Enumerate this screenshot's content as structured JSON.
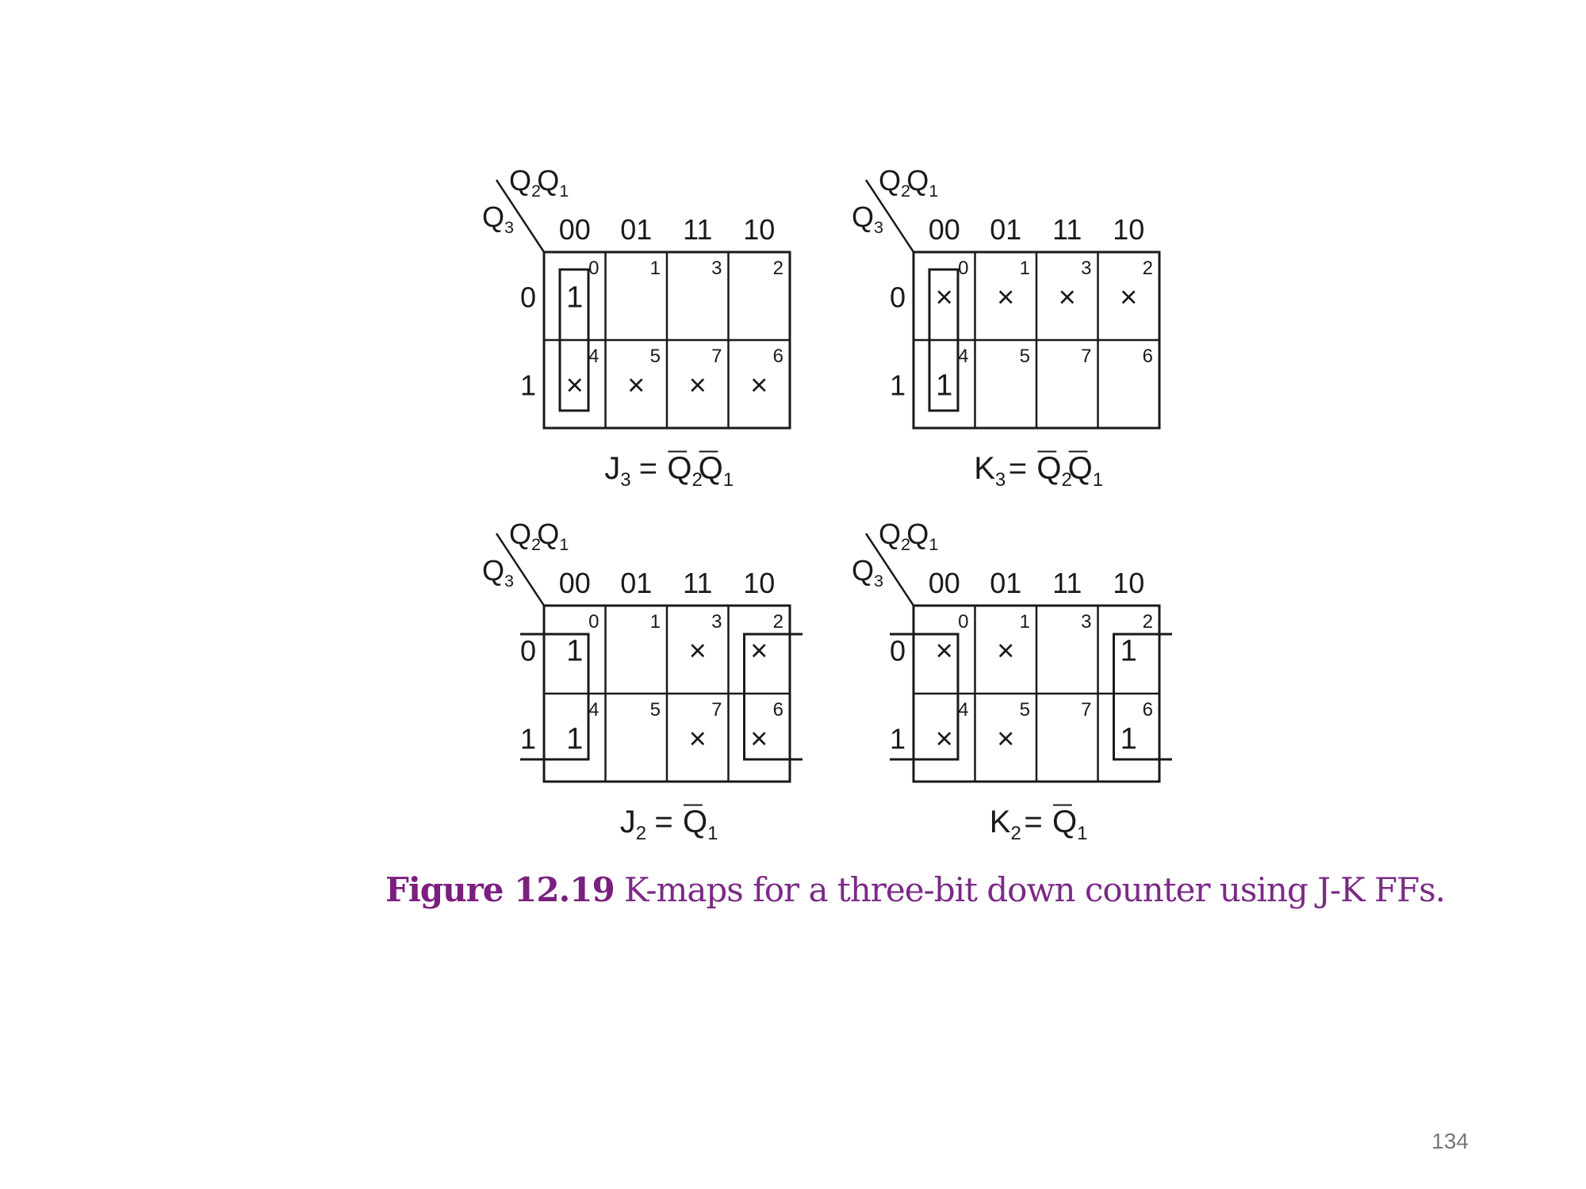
{
  "figure": {
    "caption_number": "Figure 12.19",
    "caption_text": " K-maps for a three-bit down counter using J-K FFs.",
    "page_number": "134",
    "row_variable": "Q3",
    "column_variables": "Q2Q1",
    "column_headers": [
      "00",
      "01",
      "11",
      "10"
    ],
    "row_headers": [
      "0",
      "1"
    ],
    "cell_indices": [
      [
        "0",
        "1",
        "3",
        "2"
      ],
      [
        "4",
        "5",
        "7",
        "6"
      ]
    ],
    "kmaps": [
      {
        "id": "j3",
        "function_name": "J3",
        "expression": "J3 = Q̄2Q̄1",
        "cells": [
          [
            "1",
            "",
            "",
            ""
          ],
          [
            "x",
            "x",
            "x",
            "x"
          ]
        ],
        "groups": [
          "column 00 (cells 0, 4)"
        ]
      },
      {
        "id": "k3",
        "function_name": "K3",
        "expression": "K3 = Q̄2Q̄1",
        "cells": [
          [
            "x",
            "x",
            "x",
            "x"
          ],
          [
            "1",
            "",
            "",
            ""
          ]
        ],
        "groups": [
          "column 00 (cells 0, 4)"
        ]
      },
      {
        "id": "j2",
        "function_name": "J2",
        "expression": "J2 = Q̄1",
        "cells": [
          [
            "1",
            "",
            "x",
            "x"
          ],
          [
            "1",
            "",
            "x",
            "x"
          ]
        ],
        "groups": [
          "columns 00 and 10, wrapping around (cells 0, 2, 4, 6)"
        ]
      },
      {
        "id": "k2",
        "function_name": "K2",
        "expression": "K2 = Q̄1",
        "cells": [
          [
            "x",
            "x",
            "",
            "1"
          ],
          [
            "x",
            "x",
            "",
            "1"
          ]
        ],
        "groups": [
          "columns 00 and 10, wrapping around (cells 0, 2, 4, 6)"
        ]
      }
    ]
  }
}
